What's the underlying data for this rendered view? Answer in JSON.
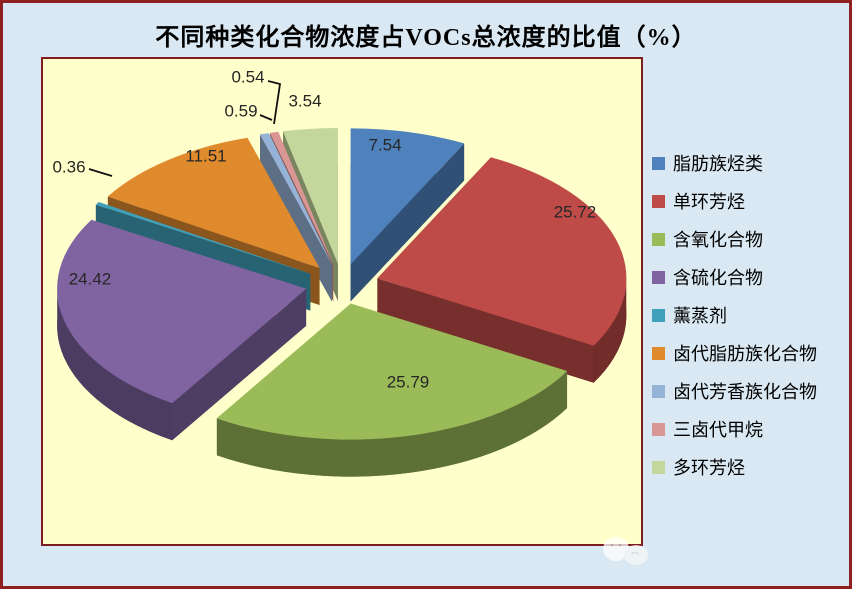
{
  "title": "不同种类化合物浓度占VOCs总浓度的比值（%）",
  "colors": {
    "background": "#D9E8F2",
    "outer_border": "#8E2021",
    "plot_background": "#FFFFCB",
    "plot_border": "#7E1D20",
    "label_text": "#262626",
    "leader_line": "#111111"
  },
  "chart_data": {
    "type": "pie",
    "style": "3d-exploded",
    "title": "不同种类化合物浓度占VOCs总浓度的比值（%）",
    "unit": "%",
    "start_angle": 0,
    "direction": "clockwise",
    "legend_position": "right",
    "slices": [
      {
        "label": "脂肪族烃类",
        "value": 7.54,
        "color": "#4F81BD",
        "label_outside": false
      },
      {
        "label": "单环芳烃",
        "value": 25.72,
        "color": "#BE4B48",
        "label_outside": false
      },
      {
        "label": "含氧化合物",
        "value": 25.79,
        "color": "#9BBB59",
        "label_outside": false
      },
      {
        "label": "含硫化合物",
        "value": 24.42,
        "color": "#8064A2",
        "label_outside": false
      },
      {
        "label": "薰蒸剂",
        "value": 0.36,
        "color": "#3FA0BA",
        "label_outside": true
      },
      {
        "label": "卤代脂肪族化合物",
        "value": 11.51,
        "color": "#E08A2E",
        "label_outside": true
      },
      {
        "label": "卤代芳香族化合物",
        "value": 0.59,
        "color": "#95B3D7",
        "label_outside": true
      },
      {
        "label": "三卤代甲烷",
        "value": 0.54,
        "color": "#D99694",
        "label_outside": true
      },
      {
        "label": "多环芳烃",
        "value": 3.54,
        "color": "#C3D69B",
        "label_outside": true
      }
    ]
  }
}
